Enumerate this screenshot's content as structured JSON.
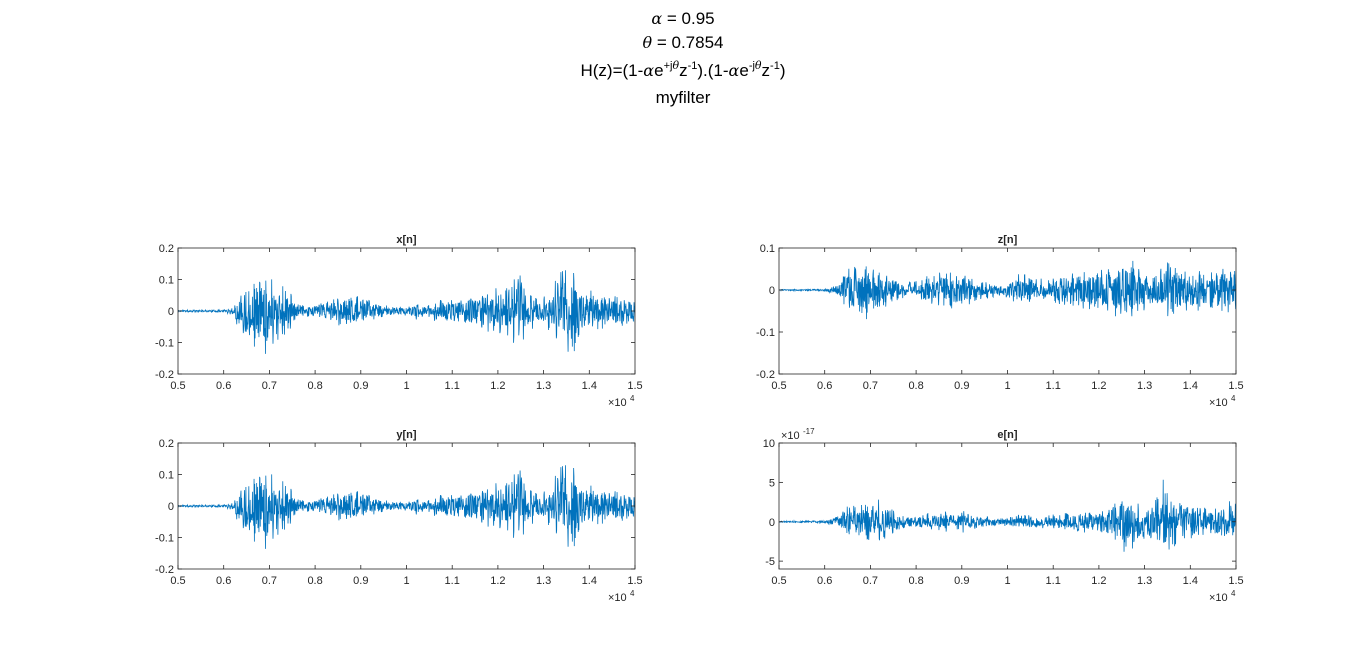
{
  "figure": {
    "title_lines": {
      "alpha_symbol": "α",
      "alpha_text": " = 0.95",
      "theta_symbol": "θ",
      "theta_text": " = 0.7854",
      "hz": {
        "p1": "H(z)=(1-",
        "alpha1": "α",
        "p2": "e",
        "sup1a": "+j",
        "sup1b": "θ",
        "p3": "z",
        "sup2": "-1",
        "p4": ").(1-",
        "alpha2": "α",
        "p5": "e",
        "sup3a": "-j",
        "sup3b": "θ",
        "p6": "z",
        "sup4": "-1",
        "p7": ")"
      },
      "name": "myfilter"
    }
  },
  "chart_data": [
    {
      "type": "line",
      "title": "x[n]",
      "xlim": [
        5000,
        15000
      ],
      "ylim": [
        -0.2,
        0.2
      ],
      "xticks": [
        5000,
        6000,
        7000,
        8000,
        9000,
        10000,
        11000,
        12000,
        13000,
        14000,
        15000
      ],
      "xtick_labels": [
        "0.5",
        "0.6",
        "0.7",
        "0.8",
        "0.9",
        "1",
        "1.1",
        "1.2",
        "1.3",
        "1.4",
        "1.5"
      ],
      "x_exponent": "×10",
      "x_exponent_power": "4",
      "yticks": [
        -0.2,
        -0.1,
        0,
        0.1,
        0.2
      ],
      "ytick_labels": [
        "-0.2",
        "-0.1",
        "0",
        "0.1",
        "0.2"
      ],
      "y_exponent": "",
      "y_exponent_power": "",
      "color": "#0072BD",
      "envelope_seed": 11,
      "envelope": [
        [
          5000,
          0.004
        ],
        [
          6000,
          0.005
        ],
        [
          6200,
          0.02
        ],
        [
          6400,
          0.1
        ],
        [
          6550,
          0.13
        ],
        [
          6800,
          0.15
        ],
        [
          7050,
          0.14
        ],
        [
          7200,
          0.13
        ],
        [
          7400,
          0.09
        ],
        [
          7600,
          0.03
        ],
        [
          7900,
          0.02
        ],
        [
          8200,
          0.04
        ],
        [
          8600,
          0.06
        ],
        [
          9000,
          0.06
        ],
        [
          9300,
          0.03
        ],
        [
          9600,
          0.02
        ],
        [
          10000,
          0.015
        ],
        [
          10200,
          0.03
        ],
        [
          10400,
          0.02
        ],
        [
          10700,
          0.04
        ],
        [
          11200,
          0.05
        ],
        [
          11800,
          0.08
        ],
        [
          12200,
          0.09
        ],
        [
          12350,
          0.12
        ],
        [
          12500,
          0.17
        ],
        [
          12650,
          0.1
        ],
        [
          12900,
          0.05
        ],
        [
          13200,
          0.08
        ],
        [
          13350,
          0.17
        ],
        [
          13500,
          0.2
        ],
        [
          13700,
          0.15
        ],
        [
          13900,
          0.08
        ],
        [
          14200,
          0.07
        ],
        [
          14600,
          0.06
        ],
        [
          15000,
          0.06
        ]
      ]
    },
    {
      "type": "line",
      "title": "z[n]",
      "xlim": [
        5000,
        15000
      ],
      "ylim": [
        -0.2,
        0.1
      ],
      "xticks": [
        5000,
        6000,
        7000,
        8000,
        9000,
        10000,
        11000,
        12000,
        13000,
        14000,
        15000
      ],
      "xtick_labels": [
        "0.5",
        "0.6",
        "0.7",
        "0.8",
        "0.9",
        "1",
        "1.1",
        "1.2",
        "1.3",
        "1.4",
        "1.5"
      ],
      "x_exponent": "×10",
      "x_exponent_power": "4",
      "yticks": [
        -0.2,
        -0.1,
        0,
        0.1
      ],
      "ytick_labels": [
        "-0.2",
        "-0.1",
        "0",
        "0.1"
      ],
      "y_exponent": "",
      "y_exponent_power": "",
      "color": "#0072BD",
      "envelope_seed": 23,
      "envelope": [
        [
          5000,
          0.002
        ],
        [
          6000,
          0.003
        ],
        [
          6300,
          0.02
        ],
        [
          6500,
          0.06
        ],
        [
          6800,
          0.08
        ],
        [
          7100,
          0.07
        ],
        [
          7500,
          0.03
        ],
        [
          7900,
          0.02
        ],
        [
          8500,
          0.05
        ],
        [
          9000,
          0.05
        ],
        [
          9400,
          0.03
        ],
        [
          9800,
          0.015
        ],
        [
          10100,
          0.03
        ],
        [
          10300,
          0.05
        ],
        [
          10600,
          0.03
        ],
        [
          11000,
          0.04
        ],
        [
          11600,
          0.05
        ],
        [
          12000,
          0.06
        ],
        [
          12300,
          0.07
        ],
        [
          12650,
          0.1
        ],
        [
          12800,
          0.06
        ],
        [
          13100,
          0.05
        ],
        [
          13400,
          0.07
        ],
        [
          13600,
          0.09
        ],
        [
          13900,
          0.06
        ],
        [
          14300,
          0.06
        ],
        [
          14700,
          0.06
        ],
        [
          15000,
          0.07
        ]
      ]
    },
    {
      "type": "line",
      "title": "y[n]",
      "xlim": [
        5000,
        15000
      ],
      "ylim": [
        -0.2,
        0.2
      ],
      "xticks": [
        5000,
        6000,
        7000,
        8000,
        9000,
        10000,
        11000,
        12000,
        13000,
        14000,
        15000
      ],
      "xtick_labels": [
        "0.5",
        "0.6",
        "0.7",
        "0.8",
        "0.9",
        "1",
        "1.1",
        "1.2",
        "1.3",
        "1.4",
        "1.5"
      ],
      "x_exponent": "×10",
      "x_exponent_power": "4",
      "yticks": [
        -0.2,
        -0.1,
        0,
        0.1,
        0.2
      ],
      "ytick_labels": [
        "-0.2",
        "-0.1",
        "0",
        "0.1",
        "0.2"
      ],
      "y_exponent": "",
      "y_exponent_power": "",
      "color": "#0072BD",
      "envelope_seed": 11,
      "envelope": [
        [
          5000,
          0.004
        ],
        [
          6000,
          0.005
        ],
        [
          6200,
          0.02
        ],
        [
          6400,
          0.1
        ],
        [
          6550,
          0.13
        ],
        [
          6800,
          0.15
        ],
        [
          7050,
          0.14
        ],
        [
          7200,
          0.13
        ],
        [
          7400,
          0.09
        ],
        [
          7600,
          0.03
        ],
        [
          7900,
          0.02
        ],
        [
          8200,
          0.04
        ],
        [
          8600,
          0.06
        ],
        [
          9000,
          0.06
        ],
        [
          9300,
          0.03
        ],
        [
          9600,
          0.02
        ],
        [
          10000,
          0.015
        ],
        [
          10200,
          0.03
        ],
        [
          10400,
          0.02
        ],
        [
          10700,
          0.04
        ],
        [
          11200,
          0.05
        ],
        [
          11800,
          0.08
        ],
        [
          12200,
          0.09
        ],
        [
          12350,
          0.12
        ],
        [
          12500,
          0.17
        ],
        [
          12650,
          0.1
        ],
        [
          12900,
          0.05
        ],
        [
          13200,
          0.08
        ],
        [
          13350,
          0.17
        ],
        [
          13500,
          0.2
        ],
        [
          13700,
          0.15
        ],
        [
          13900,
          0.08
        ],
        [
          14200,
          0.07
        ],
        [
          14600,
          0.06
        ],
        [
          15000,
          0.06
        ]
      ]
    },
    {
      "type": "line",
      "title": "e[n]",
      "xlim": [
        5000,
        15000
      ],
      "ylim": [
        -6,
        10
      ],
      "xticks": [
        5000,
        6000,
        7000,
        8000,
        9000,
        10000,
        11000,
        12000,
        13000,
        14000,
        15000
      ],
      "xtick_labels": [
        "0.5",
        "0.6",
        "0.7",
        "0.8",
        "0.9",
        "1",
        "1.1",
        "1.2",
        "1.3",
        "1.4",
        "1.5"
      ],
      "x_exponent": "×10",
      "x_exponent_power": "4",
      "yticks": [
        -5,
        0,
        5,
        10
      ],
      "ytick_labels": [
        "-5",
        "0",
        "5",
        "10"
      ],
      "y_exponent": "×10",
      "y_exponent_power": "-17",
      "color": "#0072BD",
      "envelope_seed": 37,
      "envelope": [
        [
          5000,
          0.1
        ],
        [
          6000,
          0.2
        ],
        [
          6300,
          1.0
        ],
        [
          6500,
          2.5
        ],
        [
          6800,
          3.0
        ],
        [
          7100,
          3.2
        ],
        [
          7400,
          2.8
        ],
        [
          7700,
          1.0
        ],
        [
          8000,
          0.8
        ],
        [
          8500,
          1.5
        ],
        [
          9000,
          1.6
        ],
        [
          9400,
          1.2
        ],
        [
          9800,
          0.5
        ],
        [
          10100,
          1.0
        ],
        [
          10300,
          1.2
        ],
        [
          10600,
          0.9
        ],
        [
          11200,
          1.2
        ],
        [
          11800,
          1.6
        ],
        [
          12200,
          2.0
        ],
        [
          12450,
          4.0
        ],
        [
          12550,
          6.0
        ],
        [
          12700,
          4.0
        ],
        [
          13000,
          2.5
        ],
        [
          13300,
          4.0
        ],
        [
          13450,
          6.5
        ],
        [
          13650,
          4.5
        ],
        [
          13900,
          3.0
        ],
        [
          14300,
          2.5
        ],
        [
          14700,
          2.5
        ],
        [
          15000,
          3.0
        ]
      ]
    }
  ]
}
